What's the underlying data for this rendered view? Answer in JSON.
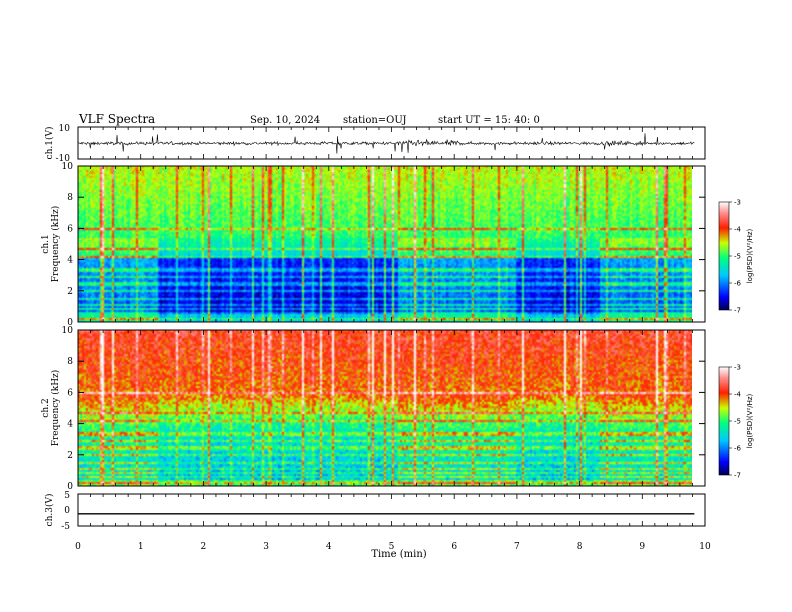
{
  "header": {
    "title": "VLF Spectra",
    "date": "Sep. 10, 2024",
    "station": "station=OUJ",
    "start": "start UT =  15: 40: 0"
  },
  "colors": {
    "colormap": [
      "#000060",
      "#0000ff",
      "#00c8ff",
      "#00ff80",
      "#c8ff00",
      "#ff0000",
      "#ffffff"
    ]
  },
  "chart_data": [
    {
      "type": "line",
      "panel": "ch1-waveform",
      "ylabel": "ch.1(V)",
      "ylim": [
        -10,
        10
      ],
      "yticks": [
        "10",
        "-10"
      ],
      "xlim": [
        0,
        9.83
      ],
      "note_shape": "noisy waveform around -0.2 V, amplitude about ±1 V with spikes near 0.6, 5.5 and 8.7 min"
    },
    {
      "type": "heatmap",
      "panel": "ch1-spectrogram",
      "ylabel": "ch.1\nFrequency (kHz)",
      "ylim": [
        0,
        10
      ],
      "yticks": [
        "0",
        "2",
        "4",
        "6",
        "8",
        "10"
      ],
      "xlim": [
        0,
        9.83
      ],
      "colorbar": {
        "label": "log(PSD)(V²/Hz)",
        "range": [
          -7,
          -3
        ],
        "ticks": [
          "-3",
          "-4",
          "-5",
          "-6",
          "-7"
        ]
      },
      "segments_min": [
        0,
        1.25,
        5.15,
        7.0,
        8.35,
        9.83
      ]
    },
    {
      "type": "heatmap",
      "panel": "ch2-spectrogram",
      "ylabel": "ch.2\nFrequency (kHz)",
      "ylim": [
        0,
        10
      ],
      "yticks": [
        "0",
        "2",
        "4",
        "6",
        "8",
        "10"
      ],
      "xlim": [
        0,
        9.83
      ],
      "colorbar": {
        "label": "log(PSD)(V²/Hz)",
        "range": [
          -7,
          -3
        ],
        "ticks": [
          "-3",
          "-4",
          "-5",
          "-6",
          "-7"
        ]
      }
    },
    {
      "type": "line",
      "panel": "ch3-waveform",
      "ylabel": "ch.3(V)",
      "ylim": [
        -5,
        5
      ],
      "yticks": [
        "5",
        "0",
        "-5"
      ],
      "x": [
        0,
        9.83
      ],
      "y": [
        -1.2,
        -1.2
      ]
    }
  ],
  "xaxis": {
    "label": "Time (min)",
    "range": [
      0,
      10
    ],
    "ticks": [
      "0",
      "1",
      "2",
      "3",
      "4",
      "5",
      "6",
      "7",
      "8",
      "9",
      "10"
    ]
  }
}
